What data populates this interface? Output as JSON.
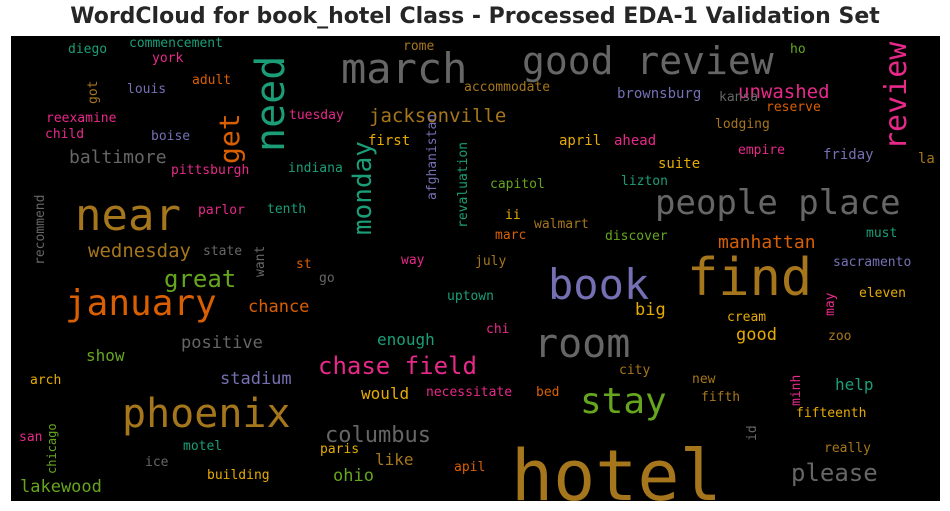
{
  "title": "WordCloud for book_hotel Class - Processed EDA-1 Validation Set",
  "palette": {
    "green": "#1b9e77",
    "orange": "#d95f02",
    "purple": "#7570b3",
    "pink": "#e7298a",
    "lime": "#66a61e",
    "yellow": "#e6ab02",
    "brown": "#a6761d",
    "gray": "#666666"
  },
  "words": [
    {
      "text": "hotel",
      "color": "#a6761d"
    },
    {
      "text": "find",
      "color": "#a6761d"
    },
    {
      "text": "book",
      "color": "#7570b3"
    },
    {
      "text": "room",
      "color": "#666666"
    },
    {
      "text": "near",
      "color": "#a6761d"
    },
    {
      "text": "phoenix",
      "color": "#a6761d"
    },
    {
      "text": "january",
      "color": "#d95f02"
    },
    {
      "text": "march",
      "color": "#666666"
    },
    {
      "text": "good review",
      "color": "#666666"
    },
    {
      "text": "people place",
      "color": "#666666"
    },
    {
      "text": "need",
      "color": "#1b9e77"
    },
    {
      "text": "stay",
      "color": "#66a61e"
    },
    {
      "text": "review",
      "color": "#e7298a"
    },
    {
      "text": "get",
      "color": "#d95f02"
    },
    {
      "text": "monday",
      "color": "#1b9e77"
    },
    {
      "text": "chase field",
      "color": "#e7298a"
    },
    {
      "text": "columbus",
      "color": "#666666"
    },
    {
      "text": "please",
      "color": "#666666"
    },
    {
      "text": "great",
      "color": "#66a61e"
    },
    {
      "text": "jacksonville",
      "color": "#a6761d"
    },
    {
      "text": "wednesday",
      "color": "#a6761d"
    },
    {
      "text": "baltimore",
      "color": "#666666"
    },
    {
      "text": "manhattan",
      "color": "#d95f02"
    },
    {
      "text": "unwashed",
      "color": "#e7298a"
    },
    {
      "text": "lakewood",
      "color": "#66a61e"
    },
    {
      "text": "positive",
      "color": "#666666"
    },
    {
      "text": "chance",
      "color": "#d95f02"
    },
    {
      "text": "enough",
      "color": "#1b9e77"
    },
    {
      "text": "stadium",
      "color": "#7570b3"
    },
    {
      "text": "show",
      "color": "#66a61e"
    },
    {
      "text": "would",
      "color": "#e6ab02"
    },
    {
      "text": "like",
      "color": "#a6761d"
    },
    {
      "text": "ohio",
      "color": "#66a61e"
    },
    {
      "text": "good",
      "color": "#e6ab02"
    },
    {
      "text": "big",
      "color": "#e6ab02"
    },
    {
      "text": "help",
      "color": "#1b9e77"
    },
    {
      "text": "brownsburg",
      "color": "#7570b3"
    },
    {
      "text": "commencement",
      "color": "#1b9e77"
    },
    {
      "text": "diego",
      "color": "#1b9e77"
    },
    {
      "text": "york",
      "color": "#e7298a"
    },
    {
      "text": "louis",
      "color": "#7570b3"
    },
    {
      "text": "adult",
      "color": "#d95f02"
    },
    {
      "text": "got",
      "color": "#a6761d"
    },
    {
      "text": "reexamine",
      "color": "#e7298a"
    },
    {
      "text": "child",
      "color": "#e7298a"
    },
    {
      "text": "boise",
      "color": "#7570b3"
    },
    {
      "text": "tuesday",
      "color": "#e7298a"
    },
    {
      "text": "rome",
      "color": "#a6761d"
    },
    {
      "text": "accommodate",
      "color": "#a6761d"
    },
    {
      "text": "first",
      "color": "#e6ab02"
    },
    {
      "text": "afghanistan",
      "color": "#7570b3"
    },
    {
      "text": "revaluation",
      "color": "#1b9e77"
    },
    {
      "text": "april",
      "color": "#e6ab02"
    },
    {
      "text": "ahead",
      "color": "#e7298a"
    },
    {
      "text": "kansa",
      "color": "#666666"
    },
    {
      "text": "reserve",
      "color": "#d95f02"
    },
    {
      "text": "lodging",
      "color": "#a6761d"
    },
    {
      "text": "empire",
      "color": "#e7298a"
    },
    {
      "text": "friday",
      "color": "#7570b3"
    },
    {
      "text": "la",
      "color": "#a6761d"
    },
    {
      "text": "ho",
      "color": "#66a61e"
    },
    {
      "text": "pittsburgh",
      "color": "#e7298a"
    },
    {
      "text": "indiana",
      "color": "#1b9e77"
    },
    {
      "text": "suite",
      "color": "#e6ab02"
    },
    {
      "text": "lizton",
      "color": "#1b9e77"
    },
    {
      "text": "capitol",
      "color": "#66a61e"
    },
    {
      "text": "recommend",
      "color": "#666666"
    },
    {
      "text": "parlor",
      "color": "#e7298a"
    },
    {
      "text": "tenth",
      "color": "#1b9e77"
    },
    {
      "text": "state",
      "color": "#666666"
    },
    {
      "text": "want",
      "color": "#666666"
    },
    {
      "text": "ii",
      "color": "#e6ab02"
    },
    {
      "text": "walmart",
      "color": "#a6761d"
    },
    {
      "text": "marc",
      "color": "#d95f02"
    },
    {
      "text": "discover",
      "color": "#66a61e"
    },
    {
      "text": "must",
      "color": "#1b9e77"
    },
    {
      "text": "sacramento",
      "color": "#7570b3"
    },
    {
      "text": "st",
      "color": "#d95f02"
    },
    {
      "text": "way",
      "color": "#e7298a"
    },
    {
      "text": "july",
      "color": "#a6761d"
    },
    {
      "text": "go",
      "color": "#666666"
    },
    {
      "text": "may",
      "color": "#e7298a"
    },
    {
      "text": "eleven",
      "color": "#e6ab02"
    },
    {
      "text": "uptown",
      "color": "#1b9e77"
    },
    {
      "text": "cream",
      "color": "#e6ab02"
    },
    {
      "text": "zoo",
      "color": "#a6761d"
    },
    {
      "text": "chi",
      "color": "#e7298a"
    },
    {
      "text": "city",
      "color": "#a6761d"
    },
    {
      "text": "necessitate",
      "color": "#e7298a"
    },
    {
      "text": "bed",
      "color": "#d95f02"
    },
    {
      "text": "new",
      "color": "#a6761d"
    },
    {
      "text": "fifth",
      "color": "#a6761d"
    },
    {
      "text": "minh",
      "color": "#e7298a"
    },
    {
      "text": "fifteenth",
      "color": "#e6ab02"
    },
    {
      "text": "arch",
      "color": "#e6ab02"
    },
    {
      "text": "san",
      "color": "#e7298a"
    },
    {
      "text": "chicago",
      "color": "#66a61e"
    },
    {
      "text": "motel",
      "color": "#1b9e77"
    },
    {
      "text": "ice",
      "color": "#666666"
    },
    {
      "text": "paris",
      "color": "#e6ab02"
    },
    {
      "text": "id",
      "color": "#666666"
    },
    {
      "text": "really",
      "color": "#a6761d"
    },
    {
      "text": "building",
      "color": "#e6ab02"
    },
    {
      "text": "apil",
      "color": "#d95f02"
    }
  ]
}
